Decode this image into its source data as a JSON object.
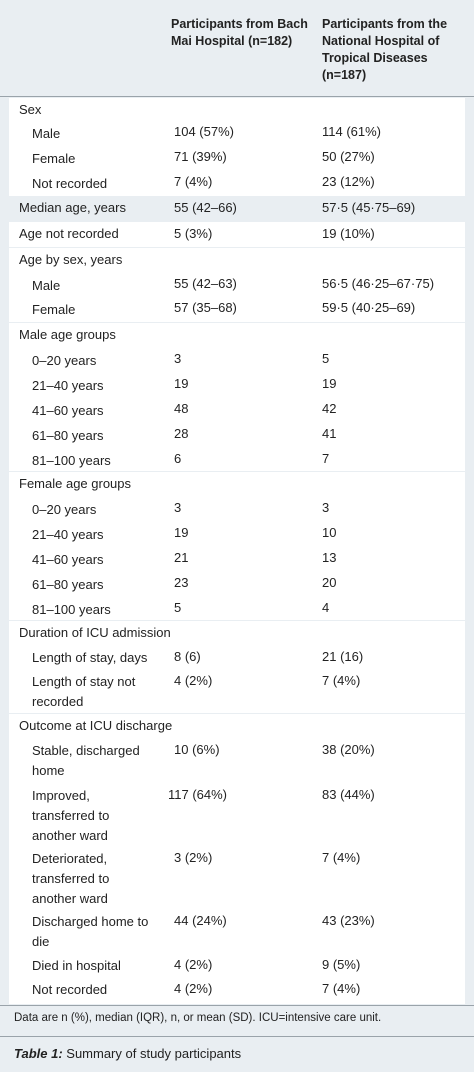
{
  "header": {
    "col1": "Participants from Bach Mai Hospital (n=182)",
    "col2": "Participants from the National Hospital of Tropical Diseases (n=187)"
  },
  "sex": {
    "label": "Sex",
    "rows": [
      {
        "label": "Male",
        "v1": "104 (57%)",
        "v2": "114 (61%)"
      },
      {
        "label": "Female",
        "v1": "71 (39%)",
        "v2": "50 (27%)"
      },
      {
        "label": "Not recorded",
        "v1": "7 (4%)",
        "v2": "23 (12%)"
      }
    ]
  },
  "median_age": {
    "label": "Median age, years",
    "v1": "55 (42–66)",
    "v2": "57·5 (45·75–69)"
  },
  "age_not_recorded": {
    "label": "Age not recorded",
    "v1": "5 (3%)",
    "v2": "19 (10%)"
  },
  "age_by_sex": {
    "label": "Age by sex, years",
    "rows": [
      {
        "label": "Male",
        "v1": "55 (42–63)",
        "v2": "56·5 (46·25–67·75)"
      },
      {
        "label": "Female",
        "v1": "57 (35–68)",
        "v2": "59·5 (40·25–69)"
      }
    ]
  },
  "male_age_groups": {
    "label": "Male age groups",
    "rows": [
      {
        "label": "0–20 years",
        "v1": "3",
        "v2": "5"
      },
      {
        "label": "21–40 years",
        "v1": "19",
        "v2": "19"
      },
      {
        "label": "41–60 years",
        "v1": "48",
        "v2": "42"
      },
      {
        "label": "61–80 years",
        "v1": "28",
        "v2": "41"
      },
      {
        "label": "81–100 years",
        "v1": "6",
        "v2": "7"
      }
    ]
  },
  "female_age_groups": {
    "label": "Female age groups",
    "rows": [
      {
        "label": "0–20 years",
        "v1": "3",
        "v2": "3"
      },
      {
        "label": "21–40 years",
        "v1": "19",
        "v2": "10"
      },
      {
        "label": "41–60 years",
        "v1": "21",
        "v2": "13"
      },
      {
        "label": "61–80 years",
        "v1": "23",
        "v2": "20"
      },
      {
        "label": "81–100 years",
        "v1": "5",
        "v2": "4"
      }
    ]
  },
  "icu_duration": {
    "label": "Duration of ICU admission",
    "rows": [
      {
        "label": "Length of stay, days",
        "v1": "8 (6)",
        "v2": "21 (16)"
      },
      {
        "label_lines": [
          "Length of stay not",
          "recorded"
        ],
        "v1": "4 (2%)",
        "v2": "7 (4%)"
      }
    ]
  },
  "icu_outcome": {
    "label": "Outcome at ICU discharge",
    "rows": [
      {
        "label_lines": [
          "Stable, discharged",
          "home"
        ],
        "v1": "10 (6%)",
        "v2": "38 (20%)"
      },
      {
        "label_lines": [
          "Improved,",
          "transferred to",
          "another ward"
        ],
        "v1": "117 (64%)",
        "v2": "83 (44%)"
      },
      {
        "label_lines": [
          "Deteriorated,",
          "transferred to",
          "another ward"
        ],
        "v1": "3 (2%)",
        "v2": "7 (4%)"
      },
      {
        "label_lines": [
          "Discharged home to",
          "die"
        ],
        "v1": "44 (24%)",
        "v2": "43 (23%)"
      },
      {
        "label": "Died in hospital",
        "v1": "4 (2%)",
        "v2": "9 (5%)"
      },
      {
        "label": "Not recorded",
        "v1": "4 (2%)",
        "v2": "7 (4%)"
      }
    ]
  },
  "footnote": "Data are n (%), median (IQR), n, or mean (SD). ICU=intensive care unit.",
  "caption": {
    "prefix": "Table 1:",
    "text": " Summary of study participants"
  }
}
